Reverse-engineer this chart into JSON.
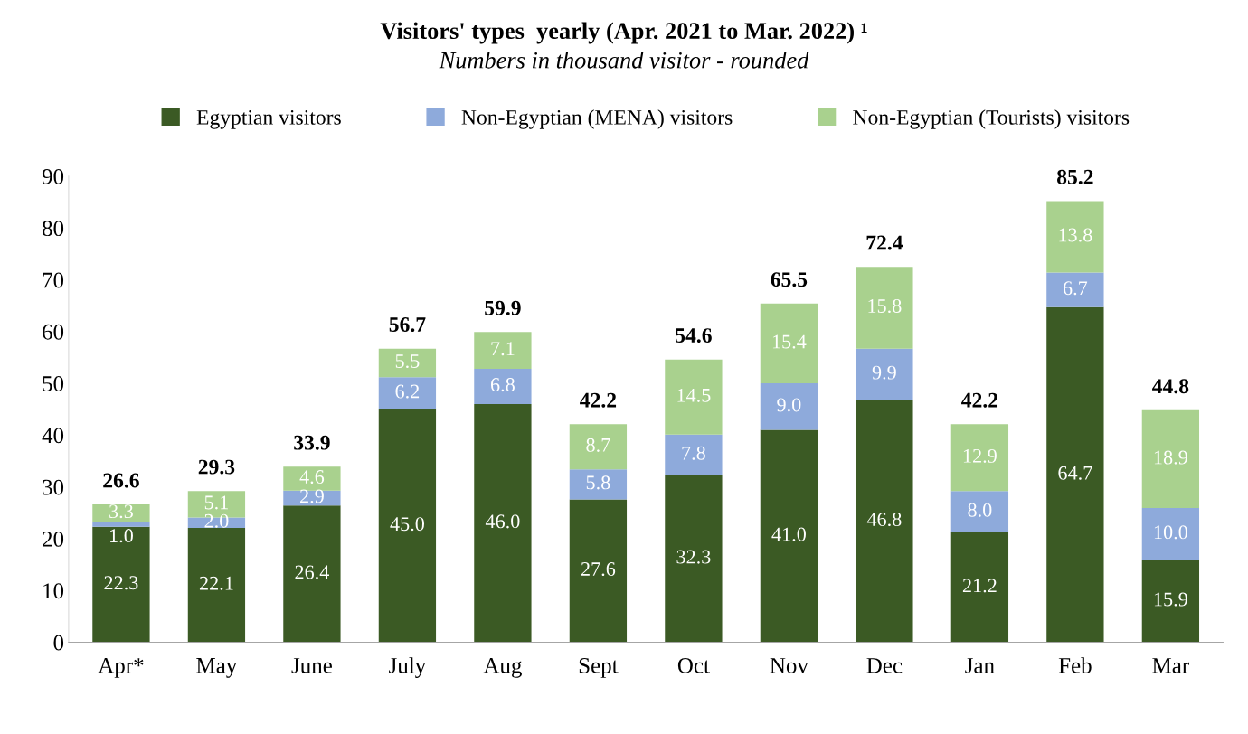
{
  "chart_data": {
    "type": "bar",
    "stacked": true,
    "title": "Visitors' types  yearly (Apr. 2021 to Mar. 2022) ¹",
    "subtitle": "Numbers in thousand visitor - rounded",
    "categories": [
      "Apr*",
      "May",
      "June",
      "July",
      "Aug",
      "Sept",
      "Oct",
      "Nov",
      "Dec",
      "Jan",
      "Feb",
      "Mar"
    ],
    "series": [
      {
        "name": "Egyptian visitors",
        "color": "#3b5a24",
        "values": [
          22.3,
          22.1,
          26.4,
          45.0,
          46.0,
          27.6,
          32.3,
          41.0,
          46.8,
          21.2,
          64.7,
          15.9
        ],
        "value_labels": [
          "22.3",
          "22.1",
          "26.4",
          "45.0",
          "46.0",
          "27.6",
          "32.3",
          "41.0",
          "46.8",
          "21.2",
          "64.7",
          "15.9"
        ]
      },
      {
        "name": "Non-Egyptian (MENA) visitors",
        "color": "#8eaadb",
        "values": [
          1.0,
          2.0,
          2.9,
          6.2,
          6.8,
          5.8,
          7.8,
          9.0,
          9.9,
          8.0,
          6.7,
          10.0
        ],
        "value_labels": [
          "1.0",
          "2.0",
          "2.9",
          "6.2",
          "6.8",
          "5.8",
          "7.8",
          "9.0",
          "9.9",
          "8.0",
          "6.7",
          "10.0"
        ]
      },
      {
        "name": "Non-Egyptian (Tourists) visitors",
        "color": "#a9d18e",
        "values": [
          3.3,
          5.1,
          4.6,
          5.5,
          7.1,
          8.7,
          14.5,
          15.4,
          15.8,
          12.9,
          13.8,
          18.9
        ],
        "value_labels": [
          "3.3",
          "5.1",
          "4.6",
          "5.5",
          "7.1",
          "8.7",
          "14.5",
          "15.4",
          "15.8",
          "12.9",
          "13.8",
          "18.9"
        ]
      }
    ],
    "totals": [
      "26.6",
      "29.3",
      "33.9",
      "56.7",
      "59.9",
      "42.2",
      "54.6",
      "65.5",
      "72.4",
      "42.2",
      "85.2",
      "44.8"
    ],
    "ylim": [
      0,
      90
    ],
    "yticks": [
      0,
      10,
      20,
      30,
      40,
      50,
      60,
      70,
      80,
      90
    ],
    "grid": false,
    "legend": "top"
  }
}
